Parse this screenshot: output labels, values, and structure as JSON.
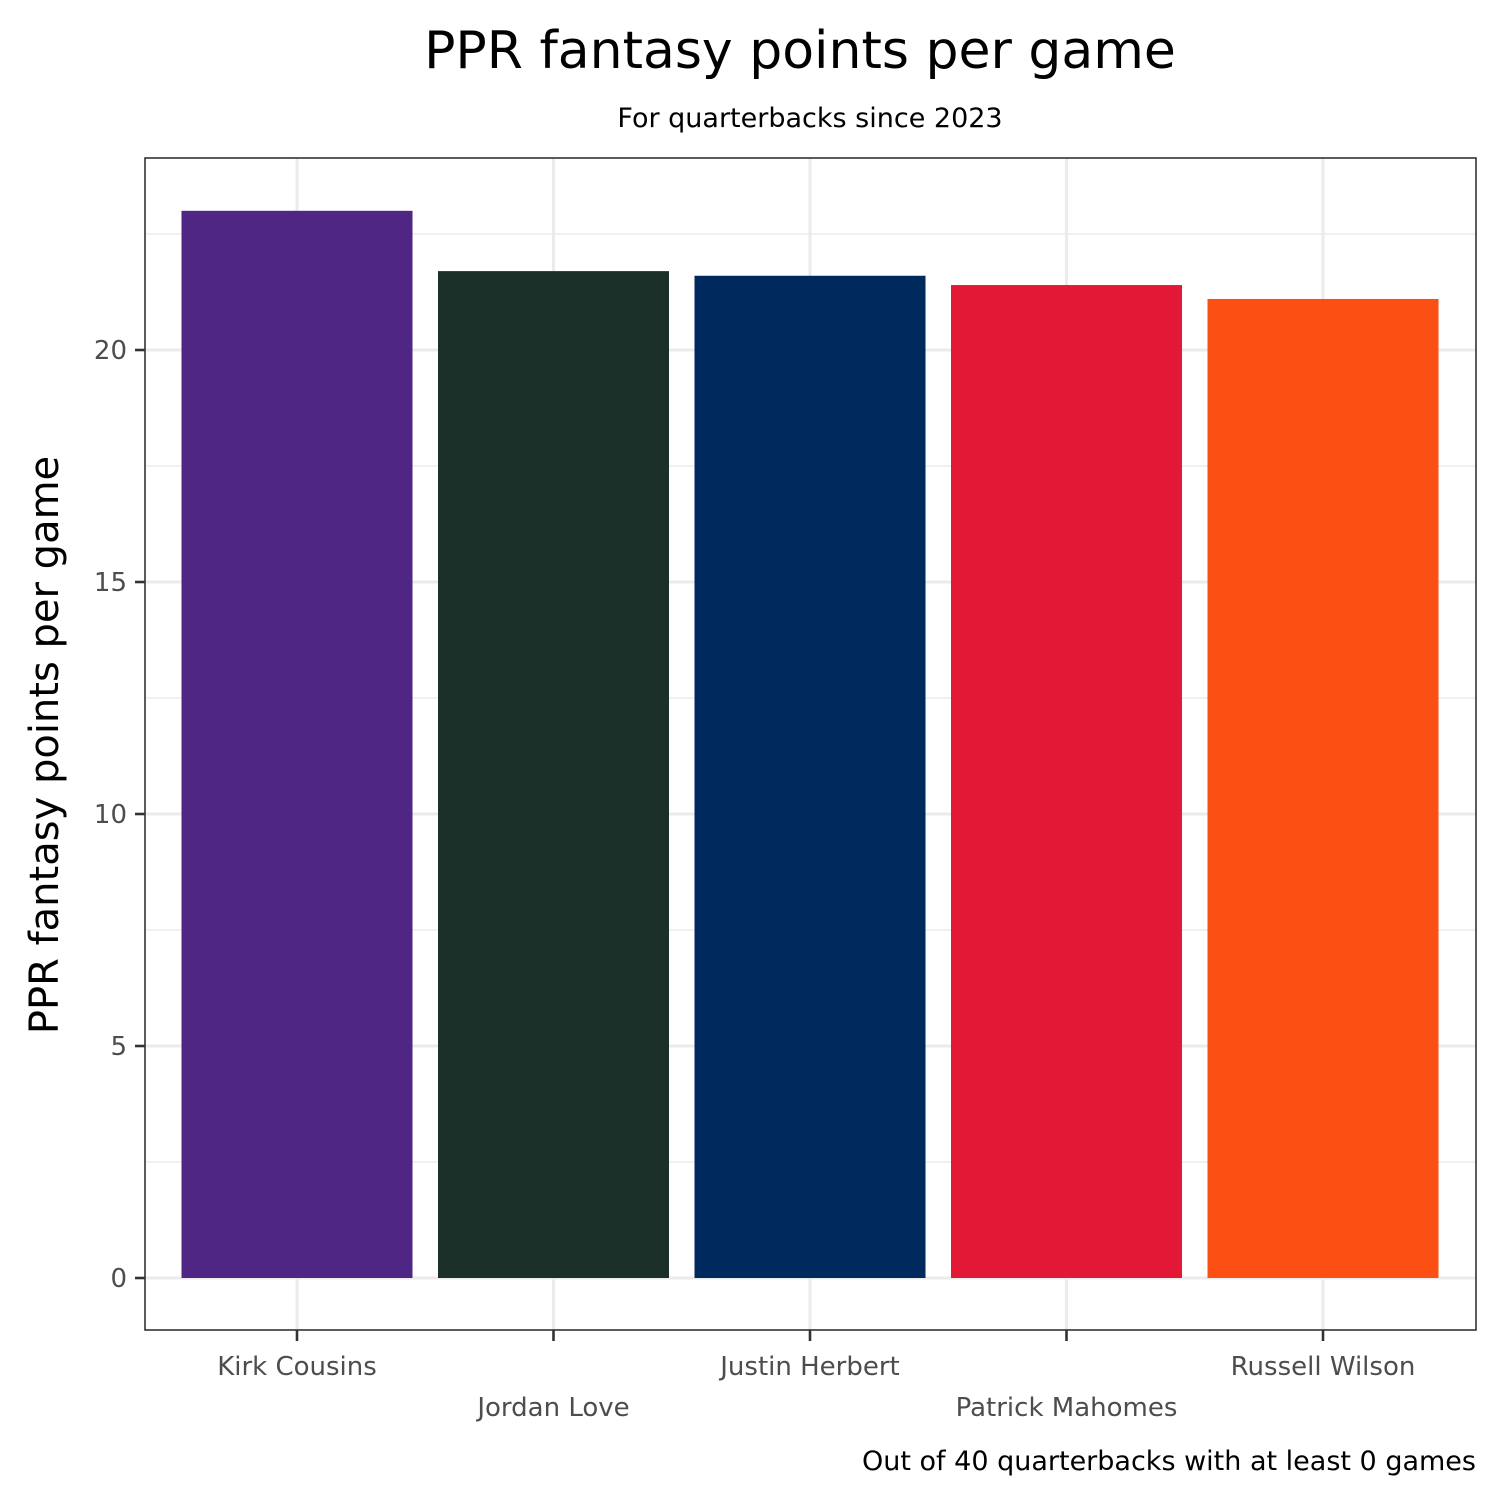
{
  "chart_data": {
    "type": "bar",
    "title": "PPR fantasy points per game",
    "subtitle": "For quarterbacks since 2023",
    "xlabel": "",
    "ylabel": "PPR fantasy points per game",
    "caption": "Out of 40 quarterbacks with at least 0 games",
    "categories": [
      "Kirk Cousins",
      "Jordan Love",
      "Justin Herbert",
      "Patrick Mahomes",
      "Russell Wilson"
    ],
    "values": [
      23.0,
      21.7,
      21.6,
      21.4,
      21.1
    ],
    "colors": [
      "#4F2683",
      "#1B3029",
      "#002A5E",
      "#E31837",
      "#FB4F14"
    ],
    "ylim": [
      -1.15,
      24.15
    ],
    "yticks": [
      0,
      5,
      10,
      15,
      20
    ],
    "ytick_labels": [
      "0",
      "5",
      "10",
      "15",
      "20"
    ],
    "grid": true,
    "legend": "none"
  }
}
